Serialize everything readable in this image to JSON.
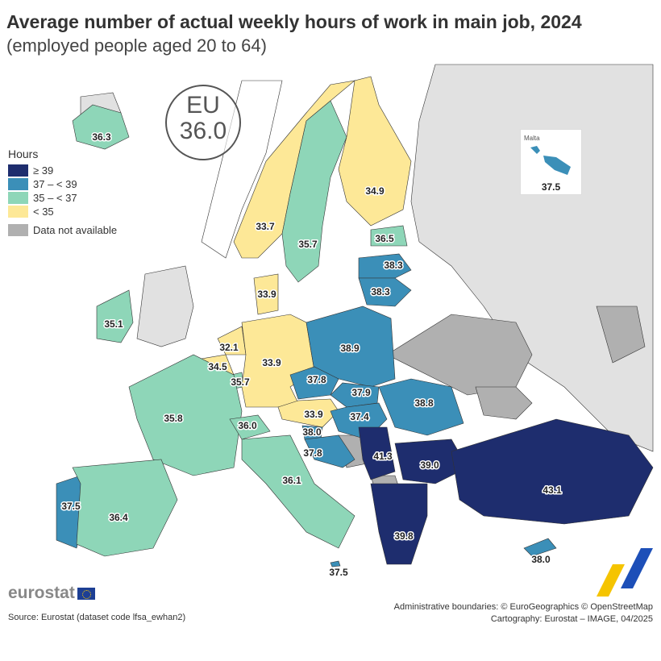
{
  "title": "Average number of actual weekly hours of work in main job, 2024",
  "subtitle": "(employed people aged 20 to 64)",
  "eu": {
    "label": "EU",
    "value": "36.0"
  },
  "legend": {
    "title": "Hours",
    "classes": [
      {
        "label": "≥ 39",
        "color": "#1e2d6e"
      },
      {
        "label": "37 – < 39",
        "color": "#3b8fb8"
      },
      {
        "label": "35 – < 37",
        "color": "#8ed6b8"
      },
      {
        "label": "< 35",
        "color": "#fde897"
      }
    ],
    "na": {
      "label": "Data not available",
      "color": "#b0b0b0"
    }
  },
  "countries": [
    {
      "value": "36.3",
      "class": 2
    },
    {
      "value": "33.7",
      "class": 3
    },
    {
      "value": "35.7",
      "class": 2
    },
    {
      "value": "34.9",
      "class": 3
    },
    {
      "value": "36.5",
      "class": 2
    },
    {
      "value": "38.3",
      "class": 1
    },
    {
      "value": "38.3",
      "class": 1
    },
    {
      "value": "35.1",
      "class": 2
    },
    {
      "value": "33.9",
      "class": 3
    },
    {
      "value": "32.1",
      "class": 3
    },
    {
      "value": "34.5",
      "class": 3
    },
    {
      "value": "35.7",
      "class": 2
    },
    {
      "value": "33.9",
      "class": 3
    },
    {
      "value": "38.9",
      "class": 1
    },
    {
      "value": "37.8",
      "class": 1
    },
    {
      "value": "37.9",
      "class": 1
    },
    {
      "value": "33.9",
      "class": 3
    },
    {
      "value": "37.4",
      "class": 1
    },
    {
      "value": "38.8",
      "class": 1
    },
    {
      "value": "35.8",
      "class": 2
    },
    {
      "value": "36.0",
      "class": 2
    },
    {
      "value": "38.0",
      "class": 1
    },
    {
      "value": "37.8",
      "class": 1
    },
    {
      "value": "41.3",
      "class": 0
    },
    {
      "value": "39.0",
      "class": 0
    },
    {
      "value": "36.1",
      "class": 2
    },
    {
      "value": "37.5",
      "class": 1
    },
    {
      "value": "36.4",
      "class": 2
    },
    {
      "value": "39.8",
      "class": 0
    },
    {
      "value": "43.1",
      "class": 0
    },
    {
      "value": "38.0",
      "class": 1
    },
    {
      "value": "37.5",
      "class": 1
    }
  ],
  "malta_inset": {
    "title": "Malta",
    "value": "37.5"
  },
  "colors": {
    "non_eu_land": "#e1e1e1",
    "sea": "#ffffff"
  },
  "footer": {
    "logo": "eurostat",
    "source": "Source: Eurostat (dataset code lfsa_ewhan2)",
    "boundaries": "Administrative boundaries: © EuroGeographics © OpenStreetMap",
    "cartography": "Cartography: Eurostat – IMAGE, 04/2025"
  }
}
